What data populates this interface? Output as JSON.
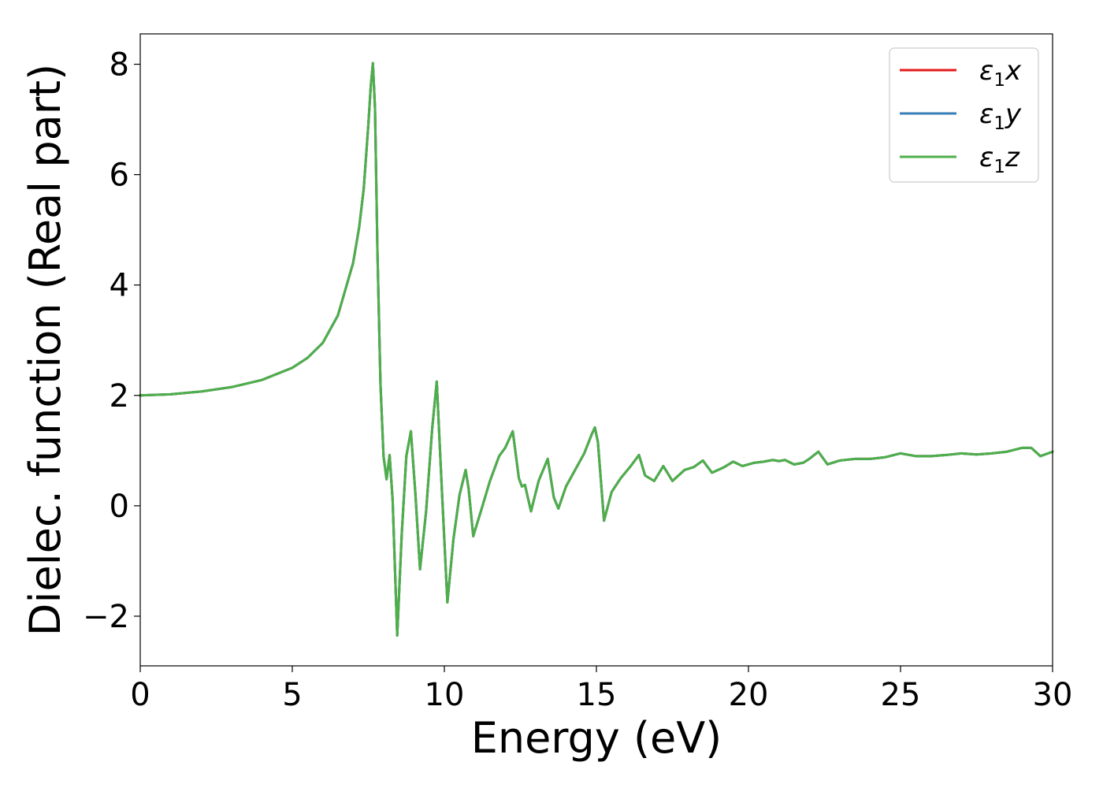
{
  "chart_data": {
    "type": "line",
    "title": "",
    "xlabel": "Energy (eV)",
    "ylabel": "Dielec. function (Real part)",
    "xlim": [
      0,
      30
    ],
    "ylim": [
      -2.9,
      8.55
    ],
    "xticks": [
      0,
      5,
      10,
      15,
      20,
      25,
      30
    ],
    "yticks": [
      -2,
      0,
      2,
      4,
      6,
      8
    ],
    "grid": false,
    "legend_position": "top-right",
    "colors": {
      "x": "#e41a1c",
      "y": "#377eb8",
      "z": "#4daf4a"
    },
    "series": [
      {
        "key": "x",
        "name": "ε1x",
        "symbol": "ε",
        "sub": "1",
        "suffix": "x",
        "color": "#e41a1c"
      },
      {
        "key": "y",
        "name": "ε1y",
        "symbol": "ε",
        "sub": "1",
        "suffix": "y",
        "color": "#377eb8"
      },
      {
        "key": "z",
        "name": "ε1z",
        "symbol": "ε",
        "sub": "1",
        "suffix": "z",
        "color": "#4daf4a"
      }
    ],
    "x": [
      0,
      1,
      2,
      3,
      4,
      5,
      5.5,
      6,
      6.5,
      7,
      7.2,
      7.35,
      7.5,
      7.58,
      7.65,
      7.72,
      7.8,
      7.9,
      8.0,
      8.1,
      8.2,
      8.3,
      8.45,
      8.6,
      8.75,
      8.9,
      9.05,
      9.2,
      9.4,
      9.6,
      9.75,
      9.9,
      10.1,
      10.3,
      10.5,
      10.7,
      10.8,
      10.95,
      11.2,
      11.5,
      11.8,
      12.0,
      12.25,
      12.45,
      12.55,
      12.65,
      12.85,
      13.1,
      13.4,
      13.6,
      13.75,
      14.0,
      14.3,
      14.6,
      14.85,
      14.95,
      15.05,
      15.25,
      15.5,
      15.8,
      16.1,
      16.4,
      16.6,
      16.9,
      17.2,
      17.5,
      17.9,
      18.2,
      18.5,
      18.8,
      19.2,
      19.5,
      19.8,
      20.2,
      20.5,
      20.8,
      21.0,
      21.2,
      21.5,
      21.8,
      22.0,
      22.3,
      22.6,
      23.0,
      23.5,
      24.0,
      24.5,
      25.0,
      25.5,
      26.0,
      26.5,
      27.0,
      27.5,
      28.0,
      28.5,
      29.0,
      29.3,
      29.6,
      30.0
    ],
    "y": [
      2.0,
      2.02,
      2.07,
      2.15,
      2.28,
      2.5,
      2.68,
      2.95,
      3.45,
      4.4,
      5.05,
      5.75,
      6.9,
      7.6,
      8.02,
      7.2,
      4.6,
      2.2,
      0.9,
      0.48,
      0.92,
      0.1,
      -2.35,
      -0.5,
      0.9,
      1.35,
      0.2,
      -1.15,
      -0.1,
      1.4,
      2.25,
      0.5,
      -1.75,
      -0.6,
      0.2,
      0.65,
      0.3,
      -0.55,
      -0.1,
      0.45,
      0.9,
      1.05,
      1.35,
      0.5,
      0.35,
      0.38,
      -0.1,
      0.45,
      0.85,
      0.15,
      -0.05,
      0.35,
      0.65,
      0.95,
      1.3,
      1.42,
      1.15,
      -0.27,
      0.25,
      0.5,
      0.7,
      0.92,
      0.55,
      0.45,
      0.72,
      0.45,
      0.65,
      0.7,
      0.82,
      0.6,
      0.7,
      0.8,
      0.72,
      0.78,
      0.8,
      0.83,
      0.81,
      0.83,
      0.75,
      0.78,
      0.85,
      0.98,
      0.75,
      0.82,
      0.85,
      0.85,
      0.88,
      0.95,
      0.9,
      0.9,
      0.92,
      0.95,
      0.93,
      0.95,
      0.98,
      1.05,
      1.05,
      0.9,
      0.98
    ]
  }
}
